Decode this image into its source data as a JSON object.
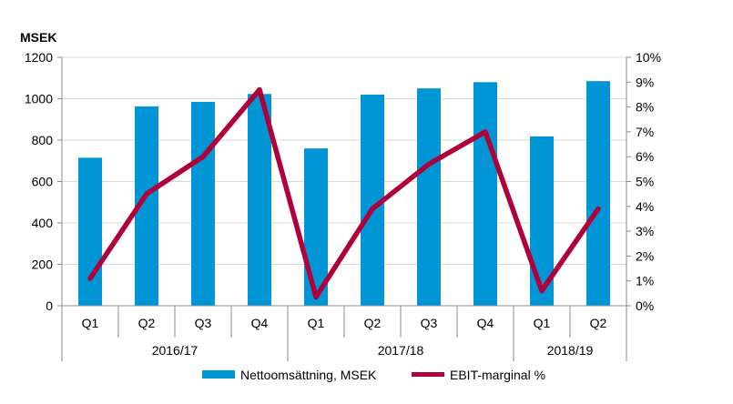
{
  "chart_data": {
    "type": "bar+line",
    "unit_label": "MSEK",
    "categories": [
      "Q1",
      "Q2",
      "Q3",
      "Q4",
      "Q1",
      "Q2",
      "Q3",
      "Q4",
      "Q1",
      "Q2"
    ],
    "groups": [
      {
        "label": "2016/17",
        "count": 4
      },
      {
        "label": "2017/18",
        "count": 4
      },
      {
        "label": "2018/19",
        "count": 2
      }
    ],
    "series": [
      {
        "name": "Nettoomsättning, MSEK",
        "type": "bar",
        "axis": "left",
        "color": "#0096D6",
        "values": [
          715,
          963,
          985,
          1023,
          760,
          1020,
          1050,
          1080,
          818,
          1085
        ]
      },
      {
        "name": "EBIT-marginal %",
        "type": "line",
        "axis": "right",
        "color": "#B0003A",
        "values": [
          1.1,
          4.5,
          6.0,
          8.7,
          0.35,
          3.9,
          5.7,
          7.0,
          0.6,
          3.9
        ]
      }
    ],
    "y_left": {
      "min": 0,
      "max": 1200,
      "ticks": [
        "0",
        "200",
        "400",
        "600",
        "800",
        "1000",
        "1200"
      ]
    },
    "y_right": {
      "min": 0,
      "max": 10,
      "ticks": [
        "0%",
        "1%",
        "2%",
        "3%",
        "4%",
        "5%",
        "6%",
        "7%",
        "8%",
        "9%",
        "10%"
      ]
    },
    "legend": [
      "Nettoomsättning, MSEK",
      "EBIT-marginal %"
    ],
    "legend_position": "bottom",
    "grid": true
  }
}
